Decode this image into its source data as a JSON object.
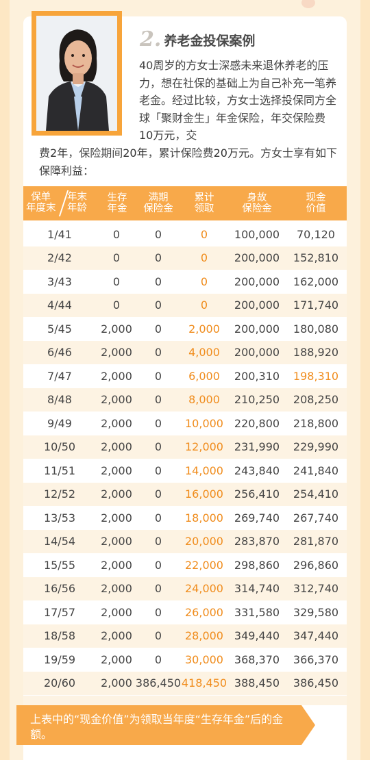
{
  "section": {
    "number": "2.",
    "title": "养老金投保案例"
  },
  "intro": {
    "right_text": "40周岁的方女士深感未来退休养老的压力，想在社保的基础上为自己补充一笔养老金。经过比较，方女士选择投保同方全球「聚财金生」年金保险，年交保险费",
    "full_before": "",
    "amount_annual": "10万元",
    "sep1": "，交",
    "full_prefix": "费",
    "pay_years": "2年",
    "sep2": "，保险期间",
    "term": "20年",
    "sep3": "，累计保险费",
    "total": "20万元",
    "tail": "。方女士享有如下保障利益："
  },
  "table": {
    "headers": {
      "year_top": "保单",
      "year_bottom": "年度末",
      "age_top": "年末",
      "age_bottom": "年龄",
      "survival": [
        "生存",
        "年金"
      ],
      "maturity": [
        "满期",
        "保险金"
      ],
      "cumulative": [
        "累计",
        "领取"
      ],
      "death": [
        "身故",
        "保险金"
      ],
      "cash": [
        "现金",
        "价值"
      ]
    },
    "rows": [
      {
        "year_age": "1/41",
        "survival": "0",
        "maturity": "0",
        "cumulative": "0",
        "death": "100,000",
        "cash": "70,120"
      },
      {
        "year_age": "2/42",
        "survival": "0",
        "maturity": "0",
        "cumulative": "0",
        "death": "200,000",
        "cash": "152,810"
      },
      {
        "year_age": "3/43",
        "survival": "0",
        "maturity": "0",
        "cumulative": "0",
        "death": "200,000",
        "cash": "162,000"
      },
      {
        "year_age": "4/44",
        "survival": "0",
        "maturity": "0",
        "cumulative": "0",
        "death": "200,000",
        "cash": "171,740"
      },
      {
        "year_age": "5/45",
        "survival": "2,000",
        "maturity": "0",
        "cumulative": "2,000",
        "death": "200,000",
        "cash": "180,080"
      },
      {
        "year_age": "6/46",
        "survival": "2,000",
        "maturity": "0",
        "cumulative": "4,000",
        "death": "200,000",
        "cash": "188,920"
      },
      {
        "year_age": "7/47",
        "survival": "2,000",
        "maturity": "0",
        "cumulative": "6,000",
        "death": "200,310",
        "cash": "198,310"
      },
      {
        "year_age": "8/48",
        "survival": "2,000",
        "maturity": "0",
        "cumulative": "8,000",
        "death": "210,250",
        "cash": "208,250"
      },
      {
        "year_age": "9/49",
        "survival": "2,000",
        "maturity": "0",
        "cumulative": "10,000",
        "death": "220,800",
        "cash": "218,800"
      },
      {
        "year_age": "10/50",
        "survival": "2,000",
        "maturity": "0",
        "cumulative": "12,000",
        "death": "231,990",
        "cash": "229,990"
      },
      {
        "year_age": "11/51",
        "survival": "2,000",
        "maturity": "0",
        "cumulative": "14,000",
        "death": "243,840",
        "cash": "241,840"
      },
      {
        "year_age": "12/52",
        "survival": "2,000",
        "maturity": "0",
        "cumulative": "16,000",
        "death": "256,410",
        "cash": "254,410"
      },
      {
        "year_age": "13/53",
        "survival": "2,000",
        "maturity": "0",
        "cumulative": "18,000",
        "death": "269,740",
        "cash": "267,740"
      },
      {
        "year_age": "14/54",
        "survival": "2,000",
        "maturity": "0",
        "cumulative": "20,000",
        "death": "283,870",
        "cash": "281,870"
      },
      {
        "year_age": "15/55",
        "survival": "2,000",
        "maturity": "0",
        "cumulative": "22,000",
        "death": "298,860",
        "cash": "296,860"
      },
      {
        "year_age": "16/56",
        "survival": "2,000",
        "maturity": "0",
        "cumulative": "24,000",
        "death": "314,740",
        "cash": "312,740"
      },
      {
        "year_age": "17/57",
        "survival": "2,000",
        "maturity": "0",
        "cumulative": "26,000",
        "death": "331,580",
        "cash": "329,580"
      },
      {
        "year_age": "18/58",
        "survival": "2,000",
        "maturity": "0",
        "cumulative": "28,000",
        "death": "349,440",
        "cash": "347,440"
      },
      {
        "year_age": "19/59",
        "survival": "2,000",
        "maturity": "0",
        "cumulative": "30,000",
        "death": "368,370",
        "cash": "366,370"
      },
      {
        "year_age": "20/60",
        "survival": "2,000",
        "maturity": "386,450",
        "cumulative": "418,450",
        "death": "388,450",
        "cash": "386,450"
      }
    ],
    "highlight_cash_row": 6
  },
  "note": "上表中的“现金价值”为领取当年度“生存年金”后的金额。",
  "colors": {
    "accent": "#f8a94a",
    "highlight_text": "#f08c1c",
    "row_alt": "#fdf3e3"
  }
}
